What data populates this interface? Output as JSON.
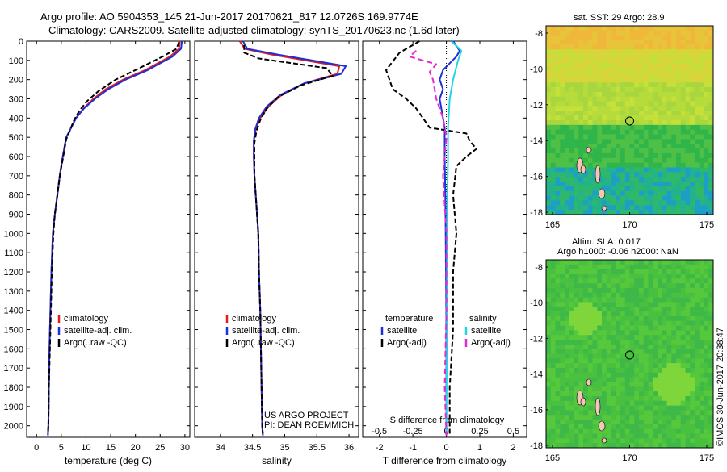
{
  "header": {
    "line1": "Argo profile: AO 5904353_145 21-Jun-2017 20170621_817 12.0726S 169.9774E",
    "line2": "Climatology: CARS2009. Satellite-adjusted climatology: synTS_20170623.nc (1.6d later)"
  },
  "colors": {
    "climatology": "#e41a1c",
    "satellite": "#1f2fd6",
    "argo": "#000000",
    "salinity_satellite": "#22d3e6",
    "salinity_argo": "#e62ad0"
  },
  "depth_axis": {
    "ticks": [
      "0",
      "100",
      "200",
      "300",
      "400",
      "500",
      "600",
      "700",
      "800",
      "900",
      "1000",
      "1100",
      "1200",
      "1300",
      "1400",
      "1500",
      "1600",
      "1700",
      "1800",
      "1900",
      "2000"
    ]
  },
  "chart_data": [
    {
      "type": "line",
      "id": "temperature",
      "xlabel": "temperature (deg C)",
      "xlim": [
        -2,
        31
      ],
      "ylim": [
        0,
        2060
      ],
      "xticks": [
        "0",
        "5",
        "10",
        "15",
        "20",
        "25",
        "30"
      ],
      "legend": [
        "climatology",
        "satellite-adj. clim.",
        "Argo(..raw -QC)"
      ],
      "series": [
        {
          "name": "climatology",
          "x": [
            29.0,
            28.8,
            27.0,
            22.0,
            17.5,
            14.0,
            11.5,
            9.5,
            8.0,
            7.0,
            6.0,
            5.3,
            4.7,
            4.2,
            3.7,
            3.3,
            3.0,
            2.8,
            2.6,
            2.5,
            2.4,
            2.3
          ],
          "y": [
            0,
            40,
            80,
            150,
            200,
            250,
            300,
            350,
            400,
            450,
            500,
            600,
            700,
            800,
            900,
            1000,
            1200,
            1400,
            1600,
            1800,
            2000,
            2050
          ]
        },
        {
          "name": "satellite-adj. clim.",
          "x": [
            29.4,
            29.2,
            27.5,
            22.5,
            18.0,
            14.5,
            11.8,
            9.6,
            8.0,
            7.0,
            6.0,
            5.3,
            4.7,
            4.2,
            3.7,
            3.3,
            3.0,
            2.8,
            2.6,
            2.5,
            2.4,
            2.3
          ],
          "y": [
            0,
            40,
            80,
            150,
            200,
            250,
            300,
            350,
            400,
            450,
            500,
            600,
            700,
            800,
            900,
            1000,
            1200,
            1400,
            1600,
            1800,
            2000,
            2050
          ]
        },
        {
          "name": "Argo(..raw -QC)",
          "x": [
            28.8,
            28.3,
            25.5,
            20.0,
            16.0,
            12.5,
            10.3,
            8.7,
            7.6,
            6.8,
            6.0,
            5.4,
            4.7,
            4.2,
            3.7,
            3.4,
            3.1,
            2.9,
            2.7,
            2.5,
            2.4,
            2.3
          ],
          "y": [
            5,
            40,
            80,
            150,
            200,
            260,
            310,
            360,
            410,
            460,
            510,
            600,
            700,
            800,
            900,
            1000,
            1200,
            1400,
            1600,
            1800,
            2000,
            2040
          ]
        }
      ]
    },
    {
      "type": "line",
      "id": "salinity",
      "xlabel": "salinity",
      "xlim": [
        33.6,
        36.15
      ],
      "ylim": [
        0,
        2060
      ],
      "xticks": [
        "34",
        "34.5",
        "35",
        "35.5",
        "36"
      ],
      "legend": [
        "climatology",
        "satellite-adj. clim.",
        "Argo(..raw -QC)"
      ],
      "series": [
        {
          "name": "climatology",
          "x": [
            34.3,
            34.38,
            34.8,
            35.85,
            35.82,
            35.3,
            34.95,
            34.75,
            34.62,
            34.55,
            34.52,
            34.52,
            34.53,
            34.55,
            34.57,
            34.59,
            34.6,
            34.62,
            34.63,
            34.64,
            34.65,
            34.66
          ],
          "y": [
            0,
            40,
            70,
            130,
            170,
            220,
            280,
            340,
            400,
            460,
            520,
            600,
            700,
            800,
            900,
            1000,
            1200,
            1400,
            1600,
            1800,
            2000,
            2050
          ]
        },
        {
          "name": "satellite-adj. clim.",
          "x": [
            34.35,
            34.42,
            34.9,
            35.95,
            35.88,
            35.3,
            34.93,
            34.72,
            34.6,
            34.54,
            34.52,
            34.52,
            34.53,
            34.55,
            34.57,
            34.59,
            34.6,
            34.62,
            34.63,
            34.64,
            34.65,
            34.66
          ],
          "y": [
            0,
            40,
            70,
            130,
            170,
            220,
            280,
            340,
            400,
            460,
            520,
            600,
            700,
            800,
            900,
            1000,
            1200,
            1400,
            1600,
            1800,
            2000,
            2050
          ]
        },
        {
          "name": "Argo(..raw -QC)",
          "x": [
            34.37,
            34.37,
            34.6,
            35.65,
            35.75,
            35.25,
            34.9,
            34.72,
            34.62,
            34.56,
            34.53,
            34.53,
            34.53,
            34.55,
            34.57,
            34.59,
            34.6,
            34.62,
            34.63,
            34.64,
            34.65,
            34.66
          ],
          "y": [
            20,
            60,
            90,
            140,
            180,
            230,
            290,
            350,
            410,
            470,
            530,
            600,
            700,
            800,
            900,
            1000,
            1200,
            1400,
            1600,
            1800,
            2000,
            2040
          ]
        }
      ]
    },
    {
      "type": "line",
      "id": "differences",
      "xlabel": "T difference from climatology",
      "xlabel_top": "S difference from climatology",
      "xlim": [
        -2.5,
        2.4
      ],
      "ylim": [
        0,
        2060
      ],
      "xticks": [
        "-2",
        "-1",
        "0",
        "1",
        "2"
      ],
      "xticks_top": [
        "-0.5",
        "-0.25",
        "0",
        "0.25",
        "0.5"
      ],
      "legend_titles": [
        "temperature",
        "salinity"
      ],
      "legend": [
        "satellite",
        "Argo(-adj)",
        "satellite",
        "Argo(-adj)"
      ],
      "series": [
        {
          "name": "satellite",
          "x": [
            0.2,
            0.4,
            0.3,
            -0.1,
            -0.2,
            -0.1,
            -0.2,
            -0.1,
            -0.05,
            -0.05,
            -0.03,
            -0.02,
            0,
            0
          ],
          "y": [
            0,
            50,
            80,
            150,
            200,
            250,
            300,
            400,
            450,
            600,
            800,
            1000,
            1500,
            2050
          ]
        },
        {
          "name": "Argo(-adj)",
          "x": [
            -0.8,
            -1.4,
            -1.8,
            -1.7,
            -1.6,
            -1.2,
            -0.9,
            -0.5,
            0.6,
            0.7,
            0.9,
            0.6,
            0.3,
            0.2,
            0.3,
            0.2,
            0.2,
            0.1,
            0.1
          ],
          "y": [
            0,
            60,
            150,
            200,
            250,
            300,
            350,
            450,
            480,
            520,
            560,
            600,
            650,
            800,
            1000,
            1200,
            1500,
            1800,
            2050
          ]
        },
        {
          "name": "satellite",
          "x": [
            0.15,
            0.45,
            0.35,
            0.2,
            0.1,
            0.05,
            0.05,
            0.03,
            0.02,
            0.01,
            0
          ],
          "y": [
            0,
            50,
            100,
            200,
            300,
            450,
            600,
            800,
            1200,
            1600,
            2050
          ]
        },
        {
          "name": "Argo(-adj)",
          "x": [
            -0.9,
            -1.1,
            -0.3,
            -0.5,
            -0.4,
            -0.3,
            -0.1,
            0,
            -0.1,
            0,
            0,
            -0.05,
            0
          ],
          "y": [
            50,
            80,
            120,
            160,
            200,
            300,
            400,
            500,
            700,
            1000,
            1400,
            1800,
            2050
          ]
        }
      ]
    }
  ],
  "panel_notes": {
    "project": "US ARGO PROJECT",
    "pi": "PI: DEAN ROEMMICH"
  },
  "maps": {
    "sst": {
      "title": "sat. SST: 29 Argo: 28.9",
      "yticks": [
        "-8",
        "-10",
        "-12",
        "-14",
        "-16",
        "-18"
      ],
      "xticks": [
        "165",
        "170",
        "175"
      ]
    },
    "sla": {
      "title1": "Altim. SLA: 0.017",
      "title2": "Argo h1000: -0.06 h2000: NaN",
      "yticks": [
        "-8",
        "-10",
        "-12",
        "-14",
        "-16",
        "-18"
      ],
      "xticks": [
        "165",
        "170",
        "175"
      ],
      "credit": "©IMOS 30-Jun-2017 20:38:47"
    }
  }
}
